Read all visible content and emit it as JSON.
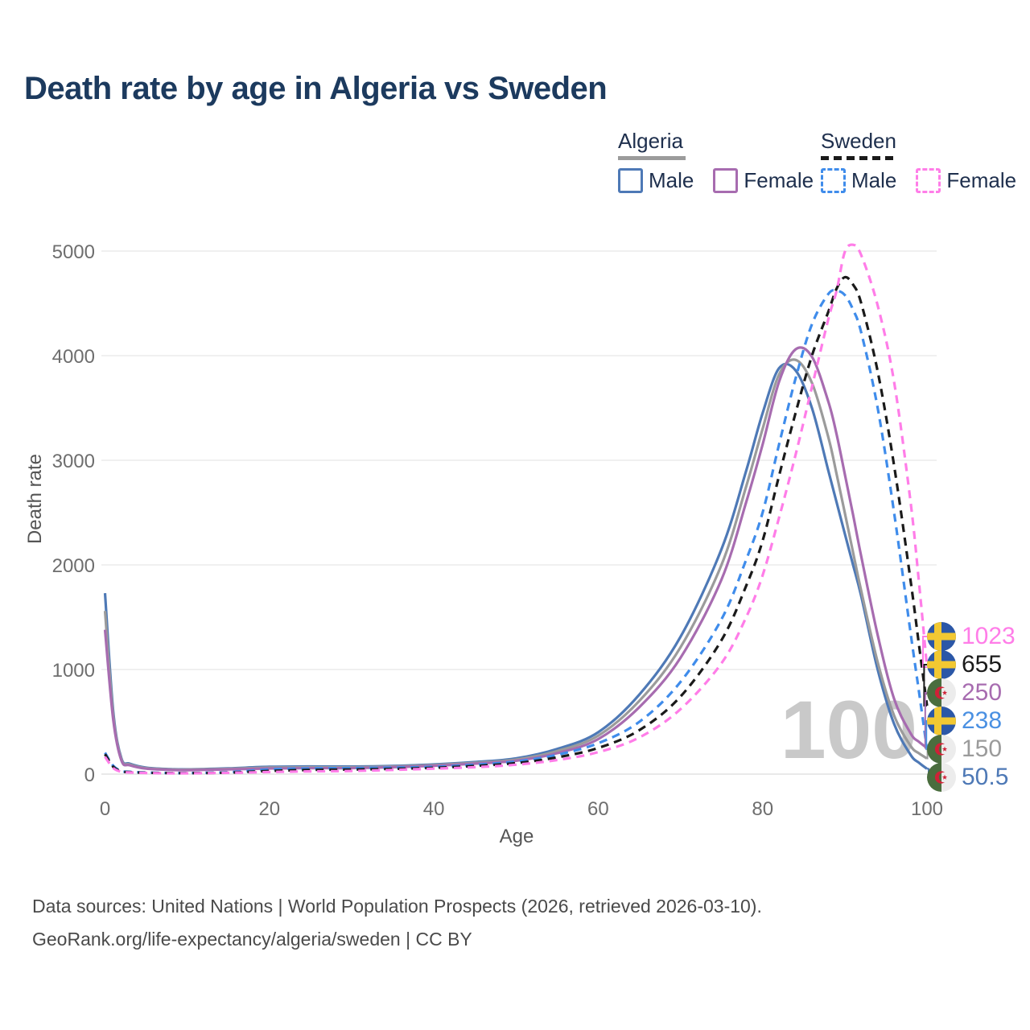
{
  "title": "Death rate by age in Algeria vs Sweden",
  "watermark": {
    "age_counter": "100"
  },
  "legend": {
    "groups": [
      {
        "label": "Algeria",
        "line_style": "solid",
        "swatch_color": "#9b9b9b",
        "items": [
          {
            "label": "Male",
            "color": "#4e79b6"
          },
          {
            "label": "Female",
            "color": "#a76cb0"
          }
        ]
      },
      {
        "label": "Sweden",
        "line_style": "dashed",
        "swatch_color": "#1a1a1a",
        "items": [
          {
            "label": "Male",
            "color": "#3f8ceb"
          },
          {
            "label": "Female",
            "color": "#ff7de8"
          }
        ]
      }
    ]
  },
  "axes": {
    "y_title": "Death rate",
    "x_title": "Age",
    "y_ticks": [
      "0",
      "1000",
      "2000",
      "3000",
      "4000",
      "5000"
    ],
    "x_ticks": [
      "0",
      "20",
      "40",
      "60",
      "80",
      "100"
    ]
  },
  "footer": {
    "line1": "Data sources: United Nations | World Population Prospects (2026, retrieved 2026-03-10).",
    "line2": "GeoRank.org/life-expectancy/algeria/sweden | CC BY"
  },
  "colors": {
    "title": "#1c3a5e",
    "tick": "#6e6e6e",
    "grid": "#e7e7e7",
    "zero_line": "#dcdcdc",
    "watermark": "#c9c9c9",
    "footer": "#4a4a4a"
  },
  "end_labels": [
    {
      "value": "1023",
      "series": "Sweden Female",
      "flag": "sweden",
      "color": "#ff7de8"
    },
    {
      "value": "655",
      "series": "Sweden Both sexes",
      "flag": "sweden",
      "color": "#1a1a1a"
    },
    {
      "value": "250",
      "series": "Algeria Female",
      "flag": "algeria",
      "color": "#a76cb0"
    },
    {
      "value": "238",
      "series": "Sweden Male",
      "flag": "sweden",
      "color": "#4a90e2"
    },
    {
      "value": "150",
      "series": "Algeria Both sexes",
      "flag": "algeria",
      "color": "#9b9b9b"
    },
    {
      "value": "50.5",
      "series": "Algeria Male",
      "flag": "algeria",
      "color": "#4e79b6"
    }
  ],
  "chart_data": {
    "type": "line",
    "title": "Death rate by age in Algeria vs Sweden",
    "xlabel": "Age",
    "ylabel": "Death rate",
    "xlim": [
      0,
      100
    ],
    "ylim": [
      0,
      5000
    ],
    "x_tick_values": [
      0,
      20,
      40,
      60,
      80,
      100
    ],
    "y_tick_values": [
      0,
      1000,
      2000,
      3000,
      4000,
      5000
    ],
    "grid": "horizontal",
    "legend_position": "top-right",
    "current_age_indicator": 100,
    "x": [
      0,
      1,
      2,
      3,
      5,
      8,
      10,
      15,
      20,
      25,
      30,
      35,
      40,
      45,
      50,
      55,
      60,
      65,
      70,
      75,
      78,
      80,
      82,
      84,
      86,
      88,
      89,
      90,
      91,
      92,
      94,
      96,
      98,
      99,
      100
    ],
    "series": [
      {
        "name": "Algeria Male",
        "country": "Algeria",
        "sex": "Male",
        "color": "#4e79b6",
        "dash": false,
        "end_value": 50.5,
        "values": [
          1730,
          600,
          150,
          100,
          62,
          48,
          45,
          55,
          70,
          73,
          72,
          78,
          92,
          115,
          150,
          240,
          400,
          760,
          1310,
          2150,
          2900,
          3450,
          3880,
          3860,
          3500,
          2900,
          2600,
          2300,
          2000,
          1700,
          1000,
          480,
          185,
          110,
          50.5
        ]
      },
      {
        "name": "Algeria Both sexes",
        "country": "Algeria",
        "sex": "Both",
        "color": "#9b9b9b",
        "dash": false,
        "end_value": 150,
        "values": [
          1560,
          560,
          140,
          92,
          57,
          44,
          42,
          50,
          62,
          65,
          65,
          72,
          86,
          108,
          139,
          220,
          368,
          700,
          1210,
          2000,
          2750,
          3300,
          3820,
          3960,
          3740,
          3220,
          2870,
          2500,
          2120,
          1750,
          1070,
          560,
          270,
          200,
          150
        ]
      },
      {
        "name": "Algeria Female",
        "country": "Algeria",
        "sex": "Female",
        "color": "#a76cb0",
        "dash": false,
        "end_value": 250,
        "values": [
          1380,
          520,
          130,
          85,
          52,
          40,
          38,
          45,
          54,
          57,
          58,
          66,
          80,
          100,
          128,
          200,
          335,
          640,
          1110,
          1860,
          2600,
          3150,
          3750,
          4060,
          3990,
          3560,
          3250,
          2870,
          2480,
          2080,
          1330,
          720,
          390,
          310,
          250
        ]
      },
      {
        "name": "Sweden Male",
        "country": "Sweden",
        "sex": "Male",
        "color": "#3f8ceb",
        "dash": true,
        "end_value": 238,
        "values": [
          205,
          80,
          30,
          22,
          15,
          11,
          10,
          18,
          45,
          55,
          58,
          62,
          70,
          90,
          120,
          185,
          295,
          500,
          880,
          1480,
          2050,
          2500,
          3150,
          3780,
          4300,
          4590,
          4620,
          4580,
          4440,
          4220,
          3500,
          2500,
          1350,
          800,
          238
        ]
      },
      {
        "name": "Sweden Both sexes",
        "country": "Sweden",
        "sex": "Both",
        "color": "#1a1a1a",
        "dash": true,
        "end_value": 655,
        "values": [
          190,
          70,
          26,
          19,
          13,
          10,
          9,
          14,
          30,
          40,
          44,
          50,
          60,
          78,
          105,
          160,
          250,
          420,
          740,
          1280,
          1800,
          2230,
          2850,
          3450,
          4000,
          4420,
          4640,
          4750,
          4680,
          4500,
          3850,
          2950,
          1850,
          1250,
          655
        ]
      },
      {
        "name": "Sweden Female",
        "country": "Sweden",
        "sex": "Female",
        "color": "#ff7de8",
        "dash": true,
        "end_value": 1023,
        "values": [
          165,
          58,
          22,
          16,
          11,
          8,
          8,
          12,
          20,
          26,
          30,
          40,
          52,
          66,
          90,
          135,
          210,
          350,
          620,
          1060,
          1500,
          1900,
          2450,
          3050,
          3700,
          4350,
          4620,
          4990,
          5060,
          4960,
          4480,
          3750,
          2600,
          1850,
          1023
        ]
      }
    ]
  }
}
